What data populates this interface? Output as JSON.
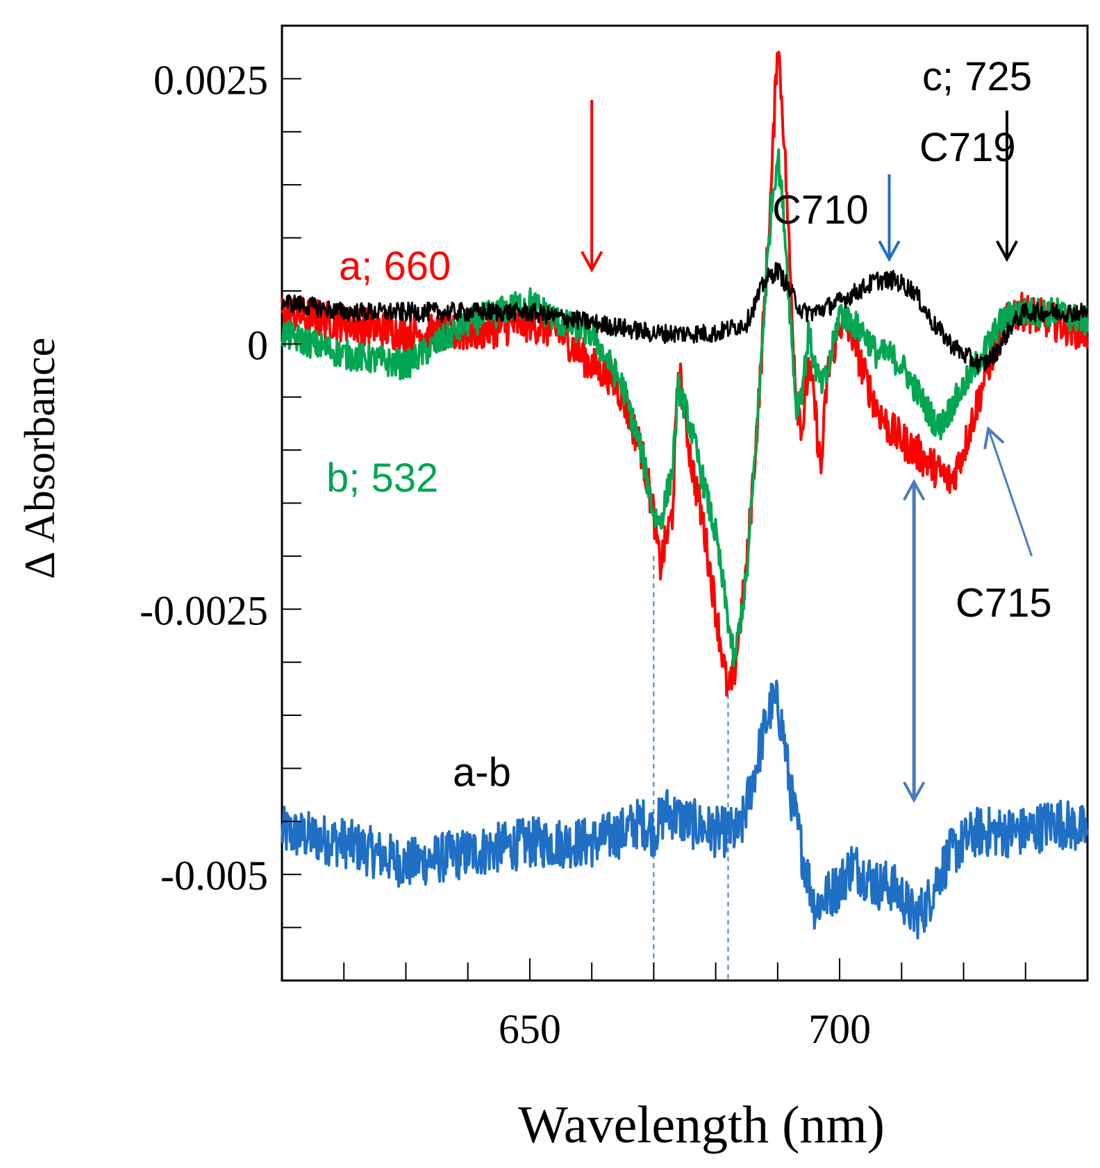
{
  "chart_data": {
    "type": "line",
    "xlabel": "Wavelength (nm)",
    "ylabel": "Δ Absorbance",
    "xlim": [
      610,
      740
    ],
    "ylim": [
      -0.006,
      0.003
    ],
    "x_ticks": [
      650,
      700
    ],
    "x_tick_labels": [
      "650",
      "700"
    ],
    "y_ticks": [
      0.0025,
      0,
      -0.0025,
      -0.005
    ],
    "y_tick_labels": [
      "0.0025",
      "0",
      "-0.0025",
      "-0.005"
    ],
    "series": [
      {
        "name": "a; 660",
        "color": "#ff0000",
        "x": [
          610,
          620,
          630,
          640,
          650,
          655,
          660,
          663,
          665,
          668,
          670,
          671,
          673,
          674,
          676,
          678,
          680,
          682,
          683,
          685,
          687,
          688,
          689,
          690,
          691,
          692,
          693,
          694,
          695,
          696,
          697,
          698,
          700,
          702,
          704,
          706,
          708,
          710,
          712,
          714,
          716,
          718,
          720,
          722,
          724,
          726,
          728,
          730,
          735,
          740
        ],
        "y": [
          0.0003,
          0.0002,
          0.0001,
          0.0001,
          0.0002,
          0.0001,
          -0.0002,
          -0.0003,
          -0.0005,
          -0.001,
          -0.0016,
          -0.0021,
          -0.0016,
          -0.0002,
          -0.0011,
          -0.0017,
          -0.0025,
          -0.0033,
          -0.0031,
          -0.0021,
          -0.0005,
          0.0005,
          0.0015,
          0.0029,
          0.002,
          0.0007,
          -0.0005,
          -0.0008,
          -0.0002,
          -0.0006,
          -0.0012,
          -0.0003,
          0.0002,
          0.0001,
          -0.0003,
          -0.0006,
          -0.0008,
          -0.0009,
          -0.001,
          -0.0011,
          -0.0012,
          -0.0013,
          -0.001,
          -0.0006,
          -0.0002,
          0.0001,
          0.0003,
          0.0003,
          0.0002,
          0.0001
        ]
      },
      {
        "name": "b; 532",
        "color": "#00a651",
        "x": [
          610,
          620,
          630,
          640,
          650,
          655,
          660,
          663,
          665,
          668,
          670,
          671,
          673,
          674,
          676,
          678,
          680,
          682,
          683,
          685,
          687,
          688,
          689,
          690,
          691,
          692,
          693,
          694,
          695,
          696,
          697,
          698,
          700,
          702,
          704,
          706,
          708,
          710,
          712,
          714,
          716,
          718,
          720,
          722,
          724,
          726,
          728,
          730,
          735,
          740
        ],
        "y": [
          0.0001,
          -0.0001,
          -0.0002,
          0.0002,
          0.0004,
          0.0002,
          0.0001,
          -0.0002,
          -0.0004,
          -0.001,
          -0.0016,
          -0.0017,
          -0.0012,
          -0.0004,
          -0.0008,
          -0.0013,
          -0.0018,
          -0.0026,
          -0.003,
          -0.0022,
          -0.0005,
          0.0005,
          0.0013,
          0.0018,
          0.0012,
          0.0003,
          -0.0006,
          -0.0004,
          0.0001,
          -0.0002,
          -0.0004,
          -0.0003,
          0.0003,
          0.0002,
          0.0001,
          -0.0001,
          -0.0001,
          -0.0002,
          -0.0004,
          -0.0006,
          -0.0008,
          -0.0006,
          -0.0004,
          -0.0002,
          0.0,
          0.0002,
          0.0003,
          0.0003,
          0.0003,
          0.0002
        ]
      },
      {
        "name": "c; 725",
        "color": "#000000",
        "x": [
          610,
          620,
          630,
          640,
          650,
          660,
          670,
          675,
          680,
          685,
          688,
          690,
          692,
          694,
          696,
          700,
          703,
          706,
          709,
          712,
          715,
          718,
          720,
          723,
          725,
          726,
          728,
          730,
          735,
          740
        ],
        "y": [
          0.0004,
          0.0003,
          0.0003,
          0.0003,
          0.0003,
          0.0002,
          0.0001,
          0.0001,
          0.0001,
          0.0002,
          0.0006,
          0.0007,
          0.0005,
          0.0003,
          0.0003,
          0.0004,
          0.0005,
          0.0006,
          0.0006,
          0.0005,
          0.0002,
          0.0,
          -0.0001,
          -0.0002,
          -0.0001,
          0.0,
          0.0002,
          0.0003,
          0.0003,
          0.0003
        ]
      },
      {
        "name": "a-b",
        "color": "#1f6fc5",
        "x": [
          610,
          620,
          630,
          640,
          650,
          660,
          665,
          668,
          670,
          672,
          675,
          680,
          684,
          686,
          688,
          689,
          690,
          691,
          692,
          694,
          696,
          698,
          700,
          702,
          704,
          706,
          708,
          710,
          712,
          714,
          716,
          718,
          720,
          722,
          725,
          730,
          735,
          740
        ],
        "y": [
          -0.0046,
          -0.0047,
          -0.0049,
          -0.0048,
          -0.0047,
          -0.0047,
          -0.0046,
          -0.0045,
          -0.0046,
          -0.0044,
          -0.0045,
          -0.0046,
          -0.0046,
          -0.0041,
          -0.0036,
          -0.0034,
          -0.0034,
          -0.0037,
          -0.0042,
          -0.0048,
          -0.0053,
          -0.0052,
          -0.0051,
          -0.0049,
          -0.005,
          -0.0051,
          -0.0051,
          -0.0052,
          -0.0054,
          -0.0053,
          -0.005,
          -0.0048,
          -0.0047,
          -0.0046,
          -0.0046,
          -0.0046,
          -0.0045,
          -0.0046
        ]
      }
    ],
    "annotations": [
      {
        "text": "a; 660",
        "color": "#ff0000"
      },
      {
        "text": "b; 532",
        "color": "#00a651"
      },
      {
        "text": "c; 725",
        "color": "#000000"
      },
      {
        "text": "C719",
        "color": "#000000"
      },
      {
        "text": "C710",
        "color": "#000000"
      },
      {
        "text": "C715",
        "color": "#000000"
      },
      {
        "text": "a-b",
        "color": "#000000"
      }
    ],
    "arrows": [
      {
        "name": "arrow-660",
        "color": "#ff0000",
        "x": 660,
        "y_from": 0.0023,
        "y_to": 0.0007
      },
      {
        "name": "arrow-710",
        "color": "#1f6fc5",
        "x": 708,
        "y_from": 0.0016,
        "y_to": 0.0008
      },
      {
        "name": "arrow-725",
        "color": "#000000",
        "x": 727,
        "y_from": 0.0022,
        "y_to": 0.0008
      },
      {
        "name": "arrow-715",
        "color": "#4a7bbf",
        "x_from": 731,
        "y_from": -0.002,
        "x_to": 724,
        "y_to": -0.0008
      },
      {
        "name": "double-arrow-712",
        "color": "#4a7bbf",
        "x": 712,
        "y_from": -0.0013,
        "y_to": -0.0043,
        "double": true
      }
    ],
    "guide_lines": [
      {
        "x": 670,
        "y_from": -0.002,
        "y_to": -0.006
      },
      {
        "x": 682,
        "y_from": -0.0033,
        "y_to": -0.006
      }
    ],
    "grid": false
  }
}
